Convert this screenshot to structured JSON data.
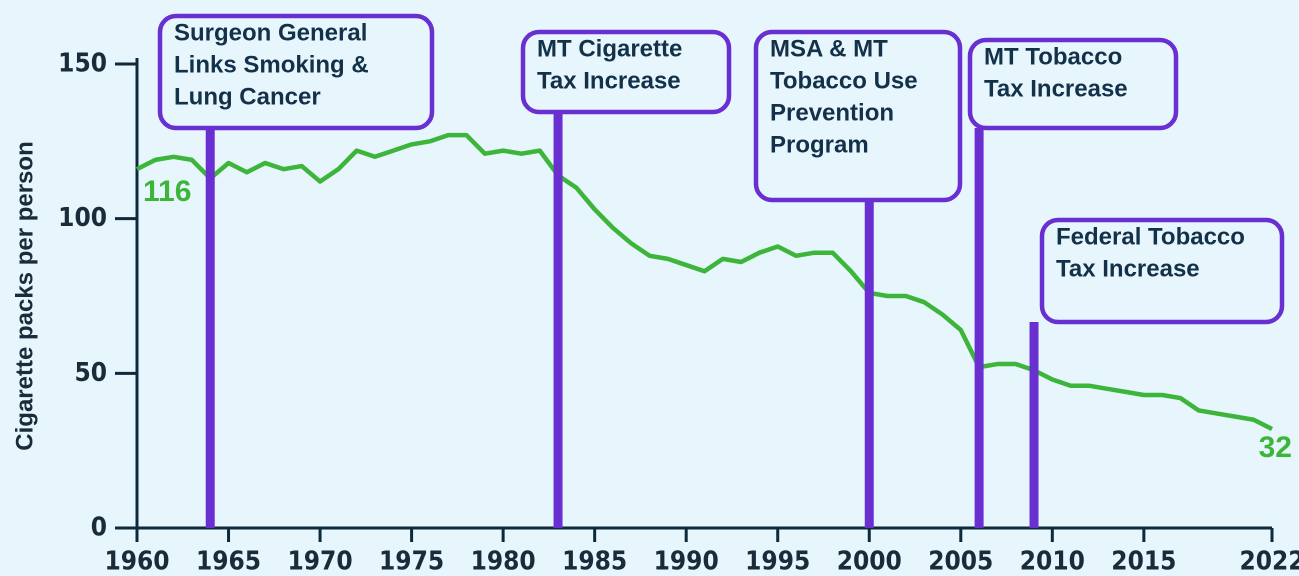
{
  "chart_data": {
    "type": "line",
    "y_label": "Cigarette packs per person",
    "x": [
      1960,
      1961,
      1962,
      1963,
      1964,
      1965,
      1966,
      1967,
      1968,
      1969,
      1970,
      1971,
      1972,
      1973,
      1974,
      1975,
      1976,
      1977,
      1978,
      1979,
      1980,
      1981,
      1982,
      1983,
      1984,
      1985,
      1986,
      1987,
      1988,
      1989,
      1990,
      1991,
      1992,
      1993,
      1994,
      1995,
      1996,
      1997,
      1998,
      1999,
      2000,
      2001,
      2002,
      2003,
      2004,
      2005,
      2006,
      2007,
      2008,
      2009,
      2010,
      2011,
      2012,
      2013,
      2014,
      2015,
      2016,
      2017,
      2018,
      2019,
      2020,
      2021,
      2022
    ],
    "series": [
      {
        "name": "Cigarette packs per person",
        "color": "#3db53a",
        "values": [
          116,
          119,
          120,
          119,
          113,
          118,
          115,
          118,
          116,
          117,
          112,
          116,
          122,
          120,
          122,
          124,
          125,
          127,
          127,
          121,
          122,
          121,
          122,
          114,
          110,
          103,
          97,
          92,
          88,
          87,
          85,
          83,
          87,
          86,
          89,
          91,
          88,
          89,
          89,
          83,
          76,
          75,
          75,
          73,
          69,
          64,
          52,
          53,
          53,
          51,
          48,
          46,
          46,
          45,
          44,
          43,
          43,
          42,
          38,
          37,
          36,
          35,
          32
        ]
      }
    ],
    "xlim": [
      1960,
      2022
    ],
    "xticks": [
      1960,
      1965,
      1970,
      1975,
      1980,
      1985,
      1990,
      1995,
      2000,
      2005,
      2010,
      2015,
      2022
    ],
    "ylim": [
      0,
      150
    ],
    "yticks": [
      0,
      50,
      100,
      150
    ],
    "annotations": [
      {
        "x": 1964,
        "lines": [
          "Surgeon General",
          "Links Smoking &",
          "Lung Cancer"
        ]
      },
      {
        "x": 1983,
        "lines": [
          "MT Cigarette",
          "Tax Increase"
        ]
      },
      {
        "x": 2000,
        "lines": [
          "MSA & MT",
          "Tobacco Use",
          "Prevention",
          "Program"
        ]
      },
      {
        "x": 2006,
        "lines": [
          "MT Tobacco",
          "Tax Increase"
        ]
      },
      {
        "x": 2009,
        "lines": [
          "Federal Tobacco",
          "Tax Increase"
        ]
      }
    ]
  }
}
